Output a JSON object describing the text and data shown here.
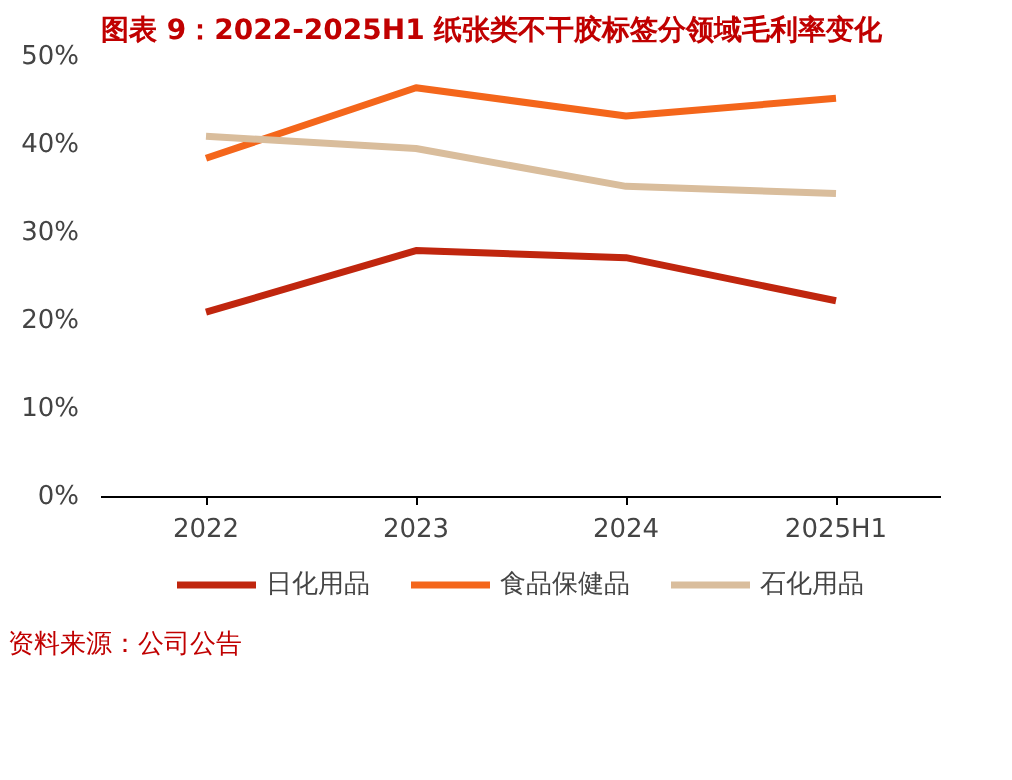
{
  "chart_data": {
    "type": "line",
    "title": "图表 9：2022-2025H1 纸张类不干胶标签分领域毛利率变化",
    "categories": [
      "2022",
      "2023",
      "2024",
      "2025H1"
    ],
    "series": [
      {
        "name": "日化用品",
        "color": "#c0260e",
        "values": [
          21.0,
          28.0,
          27.2,
          22.3
        ]
      },
      {
        "name": "食品保健品",
        "color": "#f4661b",
        "values": [
          38.5,
          46.5,
          43.3,
          45.3
        ]
      },
      {
        "name": "石化用品",
        "color": "#d9bd9c",
        "values": [
          41.0,
          39.6,
          35.3,
          34.5
        ]
      }
    ],
    "ylim": [
      0,
      50
    ],
    "yticks": [
      {
        "value": 0,
        "label": "0%"
      },
      {
        "value": 10,
        "label": "10%"
      },
      {
        "value": 20,
        "label": "20%"
      },
      {
        "value": 30,
        "label": "30%"
      },
      {
        "value": 40,
        "label": "40%"
      },
      {
        "value": 50,
        "label": "50%"
      }
    ],
    "grid": false,
    "legend": "bottom",
    "marker": "none",
    "line_style": "solid",
    "annotations": [
      "资料来源：公司公告"
    ]
  }
}
